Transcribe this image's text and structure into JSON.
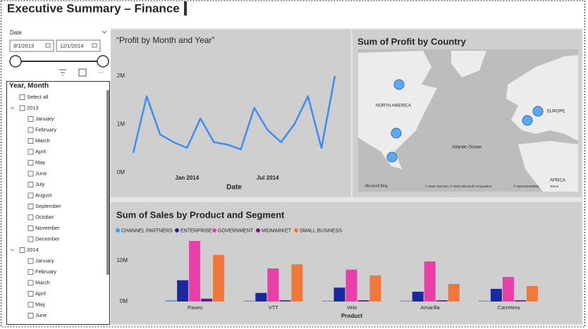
{
  "header": {
    "title": "Executive Summary – Finance"
  },
  "slicer": {
    "field_label": "Date",
    "start": "9/1/2013",
    "end": "12/1/2014",
    "list_header": "Year, Month",
    "select_all": "Select all",
    "years": [
      {
        "label": "2013",
        "months": [
          "January",
          "February",
          "March",
          "April",
          "May",
          "June",
          "July",
          "August",
          "September",
          "October",
          "November",
          "December"
        ]
      },
      {
        "label": "2014",
        "months": [
          "January",
          "February",
          "March",
          "April",
          "May",
          "June"
        ]
      }
    ]
  },
  "chart_data": [
    {
      "type": "line",
      "title": "“Profit by Month and Year”",
      "x_label": "Date",
      "categories": [
        null,
        null,
        null,
        null,
        "Jan 2014",
        null,
        null,
        null,
        null,
        null,
        "Jul 2014",
        null,
        null,
        null,
        null,
        null
      ],
      "values": [
        0.41,
        1.58,
        0.79,
        0.63,
        0.51,
        1.12,
        0.63,
        0.58,
        0.48,
        1.34,
        0.88,
        0.63,
        1.01,
        1.58,
        0.51,
        2.0
      ],
      "color": "#3d8ef0",
      "ylim": [
        0,
        2.1
      ],
      "yticks": [
        {
          "value": 0,
          "label": "0M"
        },
        {
          "value": 1,
          "label": "1M"
        },
        {
          "value": 2,
          "label": "2M"
        }
      ]
    },
    {
      "type": "map",
      "title": "Sum of Profit by Country",
      "labels": [
        "NORTH AMERICA",
        "EUROPE",
        "AFRICA"
      ],
      "ocean_label": "Atlantic Ocean",
      "provider": "Microsoft Bing",
      "attribution": "© 2025 TomTom, © 2025 Microsoft Corporation",
      "links": [
        "© OpenStreetMap",
        "Terms"
      ],
      "color": "#5fa8f0"
    },
    {
      "type": "bar",
      "title": "Sum of Sales by Product and Segment",
      "x_label": "Product",
      "categories": [
        "Paseo",
        "VTT",
        "Velo",
        "Amarilla",
        "Carretera"
      ],
      "series": [
        {
          "name": "CHANNEL PARTNERS",
          "color": "#3d9ef0",
          "values": [
            0.3,
            0.2,
            0.2,
            0.2,
            0.2
          ]
        },
        {
          "name": "ENTERPRISE",
          "color": "#1a2a9e",
          "values": [
            5.2,
            2.1,
            3.4,
            2.4,
            3.1
          ]
        },
        {
          "name": "GOVERNMENT",
          "color": "#e83fa8",
          "values": [
            14.8,
            8.1,
            7.8,
            9.8,
            6.0
          ]
        },
        {
          "name": "MIDMARKET",
          "color": "#6b1a8c",
          "values": [
            0.7,
            0.3,
            0.3,
            0.3,
            0.3
          ]
        },
        {
          "name": "SMALL BUSINESS",
          "color": "#f0783a",
          "values": [
            11.4,
            9.1,
            6.4,
            4.3,
            3.8
          ]
        }
      ],
      "ylim": [
        0,
        15.5
      ],
      "yticks": [
        {
          "value": 0,
          "label": "0M"
        },
        {
          "value": 10,
          "label": "10M"
        }
      ]
    }
  ]
}
